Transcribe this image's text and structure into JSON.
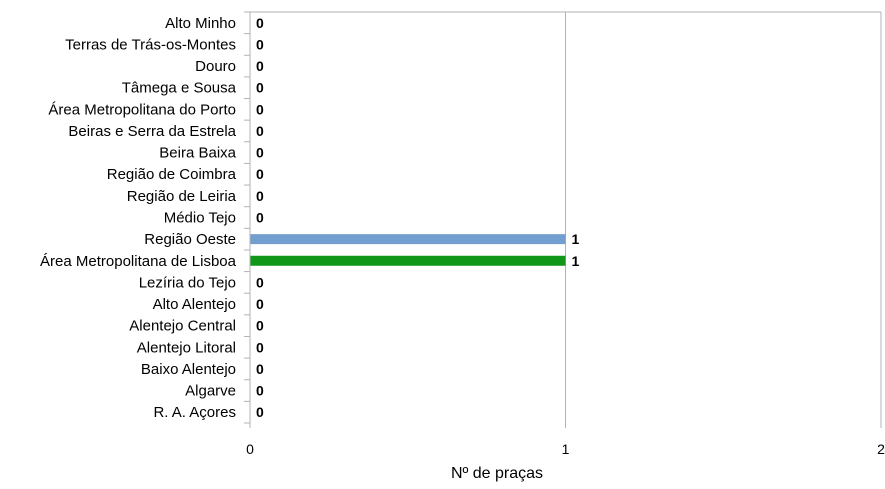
{
  "chart_data": {
    "type": "bar",
    "orientation": "horizontal",
    "categories": [
      "Alto Minho",
      "Terras de Trás-os-Montes",
      "Douro",
      "Tâmega e Sousa",
      "Área Metropolitana do Porto",
      "Beiras e Serra da Estrela",
      "Beira Baixa",
      "Região de Coimbra",
      "Região de Leiria",
      "Médio Tejo",
      "Região Oeste",
      "Área Metropolitana de Lisboa",
      "Lezíria do Tejo",
      "Alto Alentejo",
      "Alentejo Central",
      "Alentejo Litoral",
      "Baixo Alentejo",
      "Algarve",
      "R. A. Açores"
    ],
    "values": [
      0,
      0,
      0,
      0,
      0,
      0,
      0,
      0,
      0,
      0,
      1,
      1,
      0,
      0,
      0,
      0,
      0,
      0,
      0
    ],
    "value_labels": [
      "0",
      "0",
      "0",
      "0",
      "0",
      "0",
      "0",
      "0",
      "0",
      "0",
      "1",
      "1",
      "0",
      "0",
      "0",
      "0",
      "0",
      "0",
      "0"
    ],
    "bar_colors": [
      "#729fcf",
      "#729fcf",
      "#729fcf",
      "#729fcf",
      "#729fcf",
      "#729fcf",
      "#729fcf",
      "#729fcf",
      "#729fcf",
      "#729fcf",
      "#729fcf",
      "#109618",
      "#729fcf",
      "#729fcf",
      "#729fcf",
      "#729fcf",
      "#729fcf",
      "#729fcf",
      "#729fcf"
    ],
    "xlabel": "Nº de praças",
    "ylabel": "",
    "xlim": [
      0,
      2
    ],
    "xticks": [
      0,
      1,
      2
    ],
    "xtick_labels": [
      "0",
      "1",
      "2"
    ],
    "grid": "vertical",
    "legend": "none",
    "colors": {
      "grid": "#b3b3b3",
      "axis": "#b3b3b3"
    }
  }
}
